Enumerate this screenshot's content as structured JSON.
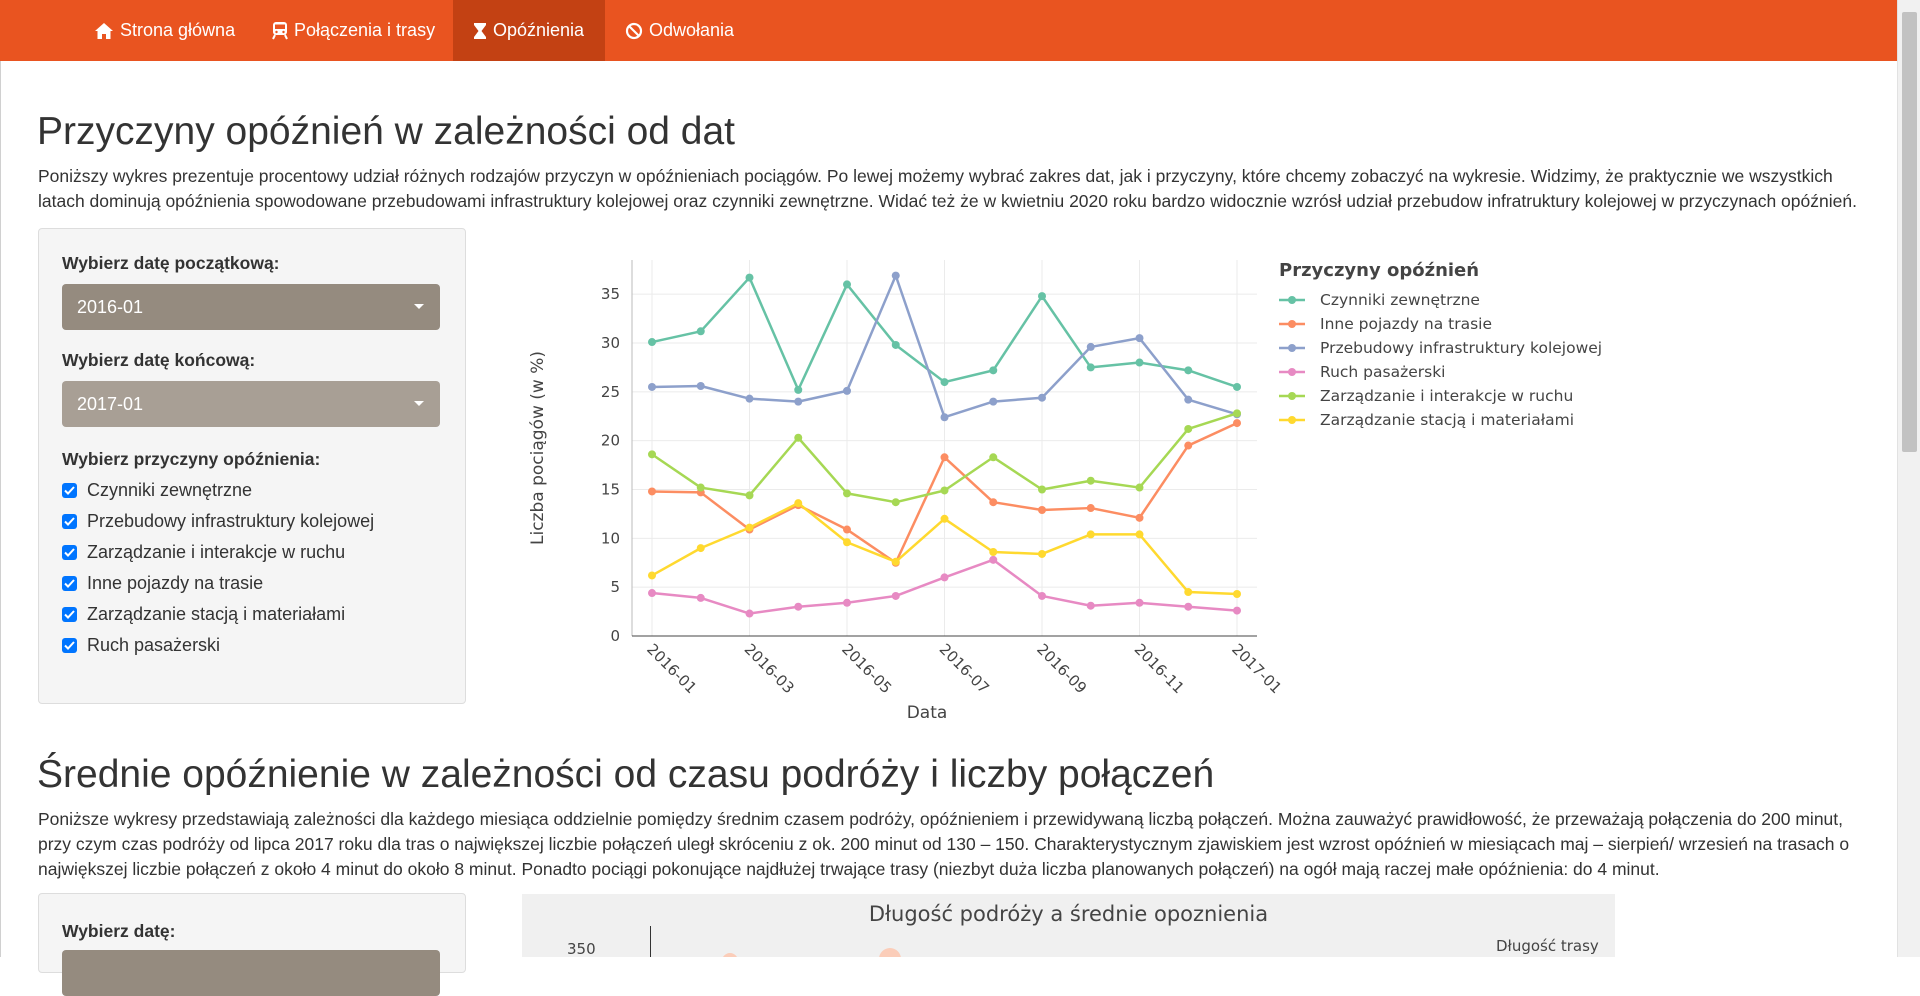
{
  "nav": {
    "items": [
      {
        "label": "Strona główna",
        "icon": "home-icon"
      },
      {
        "label": "Połączenia i trasy",
        "icon": "train-icon"
      },
      {
        "label": "Opóźnienia",
        "icon": "hourglass-icon"
      },
      {
        "label": "Odwołania",
        "icon": "ban-icon"
      }
    ],
    "active_index": 2
  },
  "section1": {
    "title": "Przyczyny opóźnień w zależności od dat",
    "description": "Poniższy wykres prezentuje procentowy udział różnych rodzajów przyczyn w opóźnieniach pociągów. Po lewej możemy wybrać zakres dat, jak i przyczyny, które chcemy zobaczyć na wykresie. Widzimy, że praktycznie we wszystkich latach dominują opóźnienia spowodowane przebudowami infrastruktury kolejowej oraz czynniki zewnętrzne. Widać też że w kwietniu 2020 roku bardzo widocznie wzrósł udział przebudow infratruktury kolejowej w przyczynach opóźnień.",
    "start_label": "Wybierz datę początkową:",
    "start_value": "2016-01",
    "end_label": "Wybierz datę końcową:",
    "end_value": "2017-01",
    "causes_label": "Wybierz przyczyny opóźnienia:",
    "causes": [
      "Czynniki zewnętrzne",
      "Przebudowy infrastruktury kolejowej",
      "Zarządzanie i interakcje w ruchu",
      "Inne pojazdy na trasie",
      "Zarządzanie stacją i materiałami",
      "Ruch pasażerski"
    ]
  },
  "chart_data": {
    "type": "line",
    "xlabel": "Data",
    "ylabel": "Liczba pociągów (w %)",
    "legend_title": "Przyczyny opóźnień",
    "legend_position": "right",
    "grid": true,
    "ylim": [
      0,
      38.5
    ],
    "yticks": [
      0,
      5,
      10,
      15,
      20,
      25,
      30,
      35
    ],
    "x": [
      "2016-01",
      "2016-02",
      "2016-03",
      "2016-04",
      "2016-05",
      "2016-06",
      "2016-07",
      "2016-08",
      "2016-09",
      "2016-10",
      "2016-11",
      "2016-12",
      "2017-01"
    ],
    "xticks": [
      "2016-01",
      "2016-03",
      "2016-05",
      "2016-07",
      "2016-09",
      "2016-11",
      "2017-01"
    ],
    "series": [
      {
        "name": "Czynniki zewnętrzne",
        "color": "#66c2a5",
        "values": [
          30.1,
          31.2,
          36.7,
          25.2,
          36.0,
          29.8,
          26.0,
          27.2,
          34.8,
          27.5,
          28.0,
          27.2,
          25.5
        ]
      },
      {
        "name": "Inne pojazdy na trasie",
        "color": "#fc8d62",
        "values": [
          14.8,
          14.7,
          10.9,
          13.4,
          10.9,
          7.5,
          18.3,
          13.7,
          12.9,
          13.1,
          12.1,
          19.5,
          21.8
        ]
      },
      {
        "name": "Przebudowy infrastruktury kolejowej",
        "color": "#8da0cb",
        "values": [
          25.5,
          25.6,
          24.3,
          24.0,
          25.1,
          36.9,
          22.4,
          24.0,
          24.4,
          29.6,
          30.5,
          24.2,
          22.7
        ]
      },
      {
        "name": "Ruch pasażerski",
        "color": "#e78ac3",
        "values": [
          4.4,
          3.9,
          2.3,
          3.0,
          3.4,
          4.1,
          6.0,
          7.8,
          4.1,
          3.1,
          3.4,
          3.0,
          2.6
        ]
      },
      {
        "name": "Zarządzanie i interakcje w ruchu",
        "color": "#a6d854",
        "values": [
          18.6,
          15.2,
          14.4,
          20.3,
          14.6,
          13.7,
          14.9,
          18.3,
          15.0,
          15.9,
          15.2,
          21.2,
          22.8
        ]
      },
      {
        "name": "Zarządzanie stacją i materiałami",
        "color": "#ffd92f",
        "values": [
          6.2,
          9.0,
          11.1,
          13.6,
          9.6,
          7.6,
          12.0,
          8.6,
          8.4,
          10.4,
          10.4,
          4.5,
          4.3
        ]
      }
    ]
  },
  "section2": {
    "title": "Średnie opóźnienie w zależności od czasu podróży i liczby połączeń",
    "description": "Poniższe wykresy przedstawiają zależności dla każdego miesiąca oddzielnie pomiędzy średnim czasem podróży, opóźnieniem i przewidywaną liczbą połączeń. Można zauważyć prawidłowość, że przeważają połączenia do 200 minut, przy czym czas podróży od lipca 2017 roku dla tras o największej liczbie połączeń uległ skróceniu z ok. 200 minut od 130 – 150. Charakterystycznym zjawiskiem jest wzrost opóźnień w miesiącach maj – sierpień/ wrzesień na trasach o największej liczbie połączeń z około 4 minut do około 8 minut. Ponadto pociągi pokonujące najdłużej trwające trasy (niezbyt duża liczba planowanych połączeń) na ogół mają raczej małe opóźnienia: do 4 minut.",
    "date_label": "Wybierz datę:",
    "chart_title": "Długość podróży a średnie opoznienia",
    "y_tick": "350",
    "legend_title": "Długość trasy"
  },
  "colors": {
    "navbar": "#e95420",
    "navbar_active": "#c34113",
    "select_start": "#958b7f",
    "select_end": "#a89f95",
    "checkbox": "#0075ff"
  }
}
